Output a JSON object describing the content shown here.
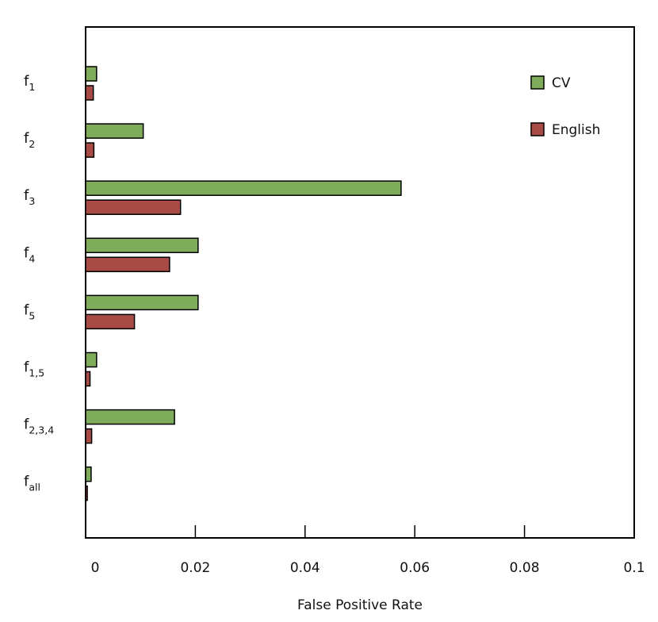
{
  "chart_data": {
    "type": "bar",
    "orientation": "horizontal",
    "categories": [
      {
        "base": "f",
        "sub": "1"
      },
      {
        "base": "f",
        "sub": "2"
      },
      {
        "base": "f",
        "sub": "3"
      },
      {
        "base": "f",
        "sub": "4"
      },
      {
        "base": "f",
        "sub": "5"
      },
      {
        "base": "f",
        "sub": "1,5"
      },
      {
        "base": "f",
        "sub": "2,3,4"
      },
      {
        "base": "f",
        "sub": "all"
      }
    ],
    "series": [
      {
        "name": "CV",
        "color": "#7fac5a",
        "values": [
          0.002,
          0.0105,
          0.0575,
          0.0205,
          0.0205,
          0.002,
          0.0162,
          0.001
        ]
      },
      {
        "name": "English",
        "color": "#a84a45",
        "values": [
          0.0014,
          0.0015,
          0.0173,
          0.0153,
          0.0089,
          0.0008,
          0.0011,
          0.0003
        ]
      }
    ],
    "xlabel": "False Positive Rate",
    "ylabel": "",
    "xlim": [
      0,
      0.1
    ],
    "xticks": [
      0,
      0.02,
      0.04,
      0.06,
      0.08,
      0.1
    ],
    "xtick_labels": [
      "0",
      "0.02",
      "0.04",
      "0.06",
      "0.08",
      "0.1"
    ],
    "grid": false,
    "legend_position": "top-right"
  }
}
